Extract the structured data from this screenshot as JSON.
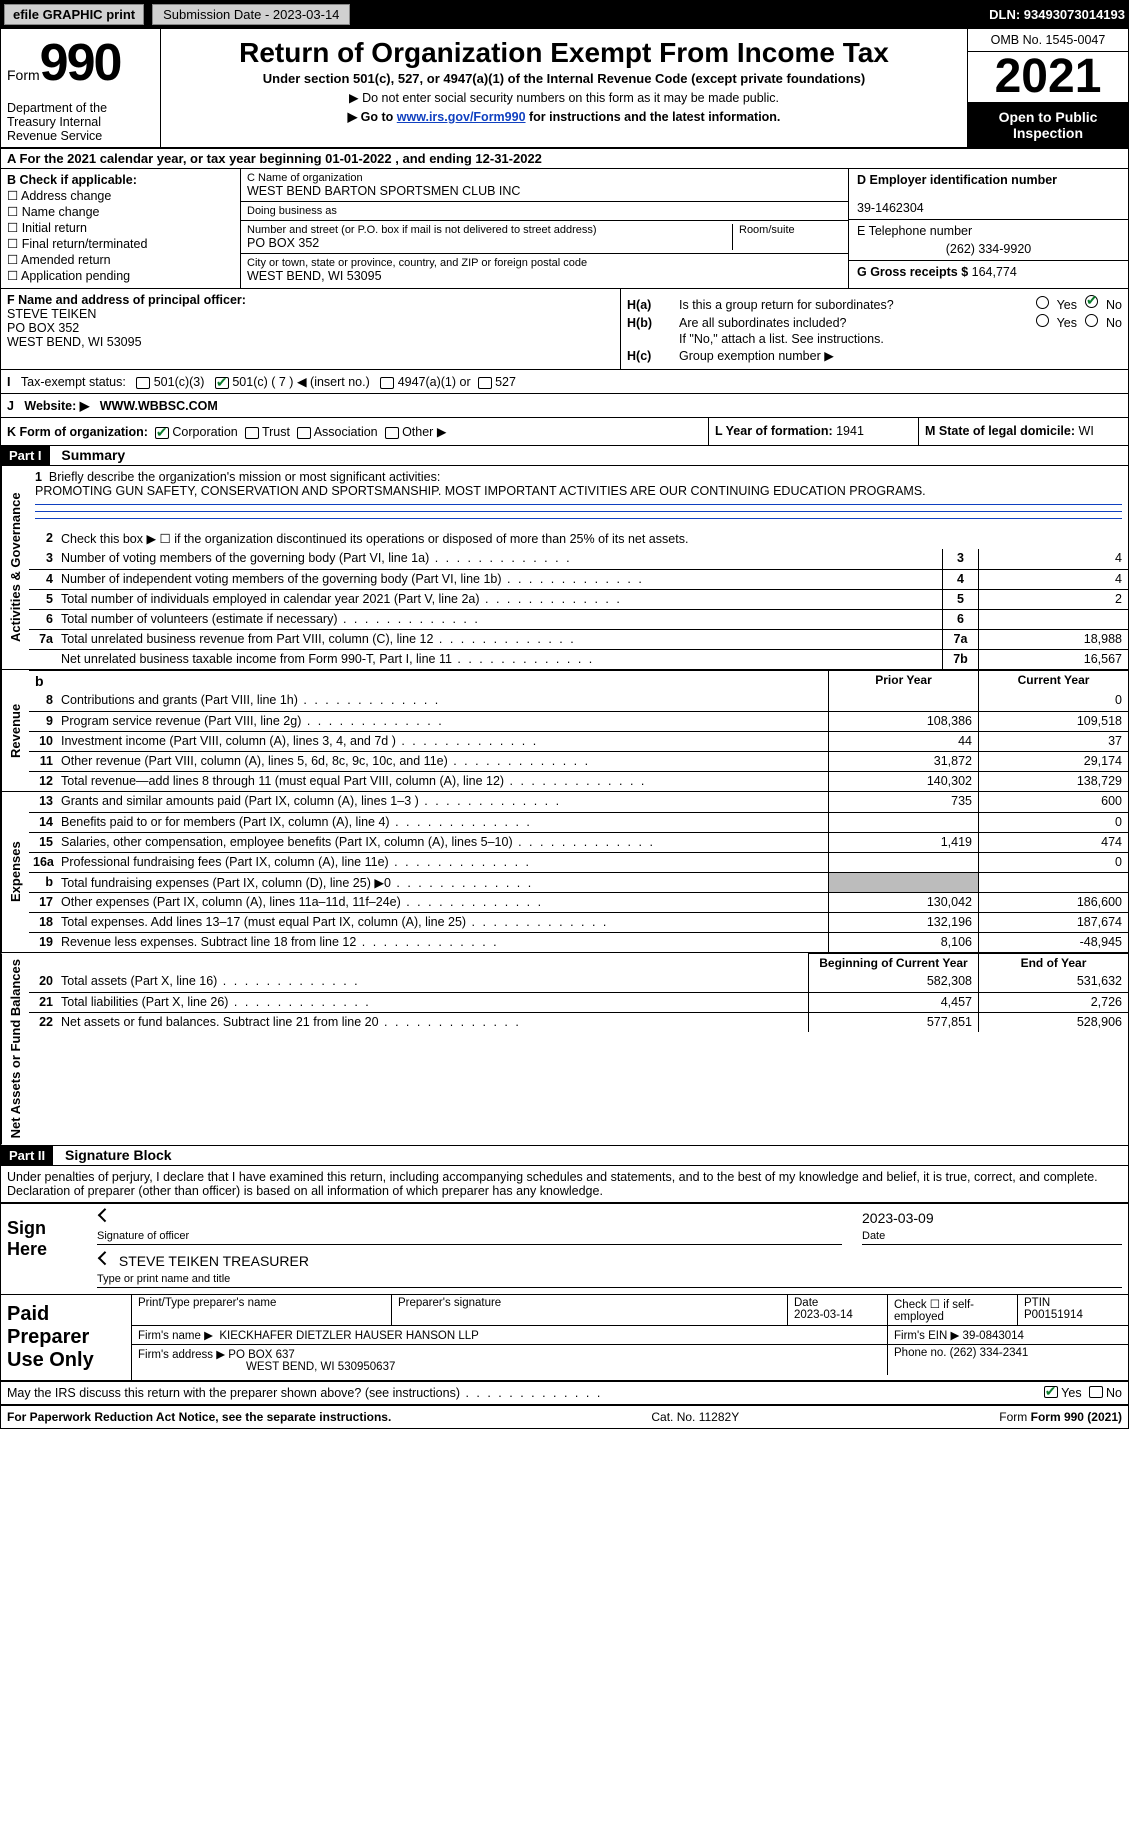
{
  "topbar": {
    "efile": "efile GRAPHIC",
    "print": "print",
    "submission": "Submission Date - 2023-03-14",
    "dln": "DLN: 93493073014193"
  },
  "header": {
    "form_label": "Form",
    "form_num": "990",
    "dept": "Department of the Treasury Internal Revenue Service",
    "title": "Return of Organization Exempt From Income Tax",
    "sub1": "Under section 501(c), 527, or 4947(a)(1) of the Internal Revenue Code (except private foundations)",
    "sub2": "▶ Do not enter social security numbers on this form as it may be made public.",
    "sub3_pre": "▶ Go to ",
    "sub3_link": "www.irs.gov/Form990",
    "sub3_post": " for instructions and the latest information.",
    "omb": "OMB No. 1545-0047",
    "year": "2021",
    "openpub": "Open to Public Inspection"
  },
  "A": {
    "line": "A For the 2021 calendar year, or tax year beginning 01-01-2022   , and ending 12-31-2022"
  },
  "B": {
    "title": "B Check if applicable:",
    "opts": [
      "Address change",
      "Name change",
      "Initial return",
      "Final return/terminated",
      "Amended return",
      "Application pending"
    ]
  },
  "C": {
    "name_lbl": "C Name of organization",
    "name": "WEST BEND BARTON SPORTSMEN CLUB INC",
    "dba_lbl": "Doing business as",
    "dba": "",
    "addr_lbl": "Number and street (or P.O. box if mail is not delivered to street address)",
    "room_lbl": "Room/suite",
    "addr": "PO BOX 352",
    "city_lbl": "City or town, state or province, country, and ZIP or foreign postal code",
    "city": "WEST BEND, WI  53095"
  },
  "D": {
    "lbl": "D Employer identification number",
    "val": "39-1462304"
  },
  "E": {
    "lbl": "E Telephone number",
    "val": "(262) 334-9920"
  },
  "G": {
    "lbl": "G Gross receipts $",
    "val": "164,774"
  },
  "F": {
    "lbl": "F  Name and address of principal officer:",
    "name": "STEVE TEIKEN",
    "addr1": "PO BOX 352",
    "addr2": "WEST BEND, WI  53095"
  },
  "H": {
    "a": "Is this a group return for subordinates?",
    "b": "Are all subordinates included?",
    "ifno": "If \"No,\" attach a list. See instructions.",
    "c": "Group exemption number ▶",
    "yes": "Yes",
    "no": "No"
  },
  "I": {
    "lbl": "Tax-exempt status:",
    "o1": "501(c)(3)",
    "o2": "501(c) ( 7 ) ◀ (insert no.)",
    "o3": "4947(a)(1) or",
    "o4": "527"
  },
  "J": {
    "lbl": "Website: ▶",
    "val": "WWW.WBBSC.COM"
  },
  "K": {
    "lbl": "K Form of organization:",
    "o1": "Corporation",
    "o2": "Trust",
    "o3": "Association",
    "o4": "Other ▶"
  },
  "L": {
    "lbl": "L Year of formation:",
    "val": "1941"
  },
  "M": {
    "lbl": "M State of legal domicile:",
    "val": "WI"
  },
  "part1": {
    "bar": "Part I",
    "title": "Summary",
    "q1_lbl": "Briefly describe the organization's mission or most significant activities:",
    "q1_val": "PROMOTING GUN SAFETY, CONSERVATION AND SPORTSMANSHIP. MOST IMPORTANT ACTIVITIES ARE OUR CONTINUING EDUCATION PROGRAMS.",
    "q2": "Check this box ▶ ☐  if the organization discontinued its operations or disposed of more than 25% of its net assets.",
    "side_ag": "Activities & Governance",
    "side_rev": "Revenue",
    "side_exp": "Expenses",
    "side_net": "Net Assets or Fund Balances",
    "hdr_prior": "Prior Year",
    "hdr_curr": "Current Year",
    "hdr_beg": "Beginning of Current Year",
    "hdr_end": "End of Year",
    "rows_ag": [
      {
        "n": "3",
        "d": "Number of voting members of the governing body (Part VI, line 1a)",
        "box": "3",
        "v": "4"
      },
      {
        "n": "4",
        "d": "Number of independent voting members of the governing body (Part VI, line 1b)",
        "box": "4",
        "v": "4"
      },
      {
        "n": "5",
        "d": "Total number of individuals employed in calendar year 2021 (Part V, line 2a)",
        "box": "5",
        "v": "2"
      },
      {
        "n": "6",
        "d": "Total number of volunteers (estimate if necessary)",
        "box": "6",
        "v": ""
      },
      {
        "n": "7a",
        "d": "Total unrelated business revenue from Part VIII, column (C), line 12",
        "box": "7a",
        "v": "18,988"
      },
      {
        "n": "",
        "d": "Net unrelated business taxable income from Form 990-T, Part I, line 11",
        "box": "7b",
        "v": "16,567"
      }
    ],
    "rows_rev": [
      {
        "n": "8",
        "d": "Contributions and grants (Part VIII, line 1h)",
        "p": "",
        "c": "0"
      },
      {
        "n": "9",
        "d": "Program service revenue (Part VIII, line 2g)",
        "p": "108,386",
        "c": "109,518"
      },
      {
        "n": "10",
        "d": "Investment income (Part VIII, column (A), lines 3, 4, and 7d )",
        "p": "44",
        "c": "37"
      },
      {
        "n": "11",
        "d": "Other revenue (Part VIII, column (A), lines 5, 6d, 8c, 9c, 10c, and 11e)",
        "p": "31,872",
        "c": "29,174"
      },
      {
        "n": "12",
        "d": "Total revenue—add lines 8 through 11 (must equal Part VIII, column (A), line 12)",
        "p": "140,302",
        "c": "138,729"
      }
    ],
    "rows_exp": [
      {
        "n": "13",
        "d": "Grants and similar amounts paid (Part IX, column (A), lines 1–3 )",
        "p": "735",
        "c": "600"
      },
      {
        "n": "14",
        "d": "Benefits paid to or for members (Part IX, column (A), line 4)",
        "p": "",
        "c": "0"
      },
      {
        "n": "15",
        "d": "Salaries, other compensation, employee benefits (Part IX, column (A), lines 5–10)",
        "p": "1,419",
        "c": "474"
      },
      {
        "n": "16a",
        "d": "Professional fundraising fees (Part IX, column (A), line 11e)",
        "p": "",
        "c": "0"
      },
      {
        "n": "b",
        "d": "Total fundraising expenses (Part IX, column (D), line 25) ▶0",
        "p": "SH",
        "c": "SH"
      },
      {
        "n": "17",
        "d": "Other expenses (Part IX, column (A), lines 11a–11d, 11f–24e)",
        "p": "130,042",
        "c": "186,600"
      },
      {
        "n": "18",
        "d": "Total expenses. Add lines 13–17 (must equal Part IX, column (A), line 25)",
        "p": "132,196",
        "c": "187,674"
      },
      {
        "n": "19",
        "d": "Revenue less expenses. Subtract line 18 from line 12",
        "p": "8,106",
        "c": "-48,945"
      }
    ],
    "rows_net": [
      {
        "n": "20",
        "d": "Total assets (Part X, line 16)",
        "p": "582,308",
        "c": "531,632"
      },
      {
        "n": "21",
        "d": "Total liabilities (Part X, line 26)",
        "p": "4,457",
        "c": "2,726"
      },
      {
        "n": "22",
        "d": "Net assets or fund balances. Subtract line 21 from line 20",
        "p": "577,851",
        "c": "528,906"
      }
    ]
  },
  "part2": {
    "bar": "Part II",
    "title": "Signature Block",
    "decl": "Under penalties of perjury, I declare that I have examined this return, including accompanying schedules and statements, and to the best of my knowledge and belief, it is true, correct, and complete. Declaration of preparer (other than officer) is based on all information of which preparer has any knowledge.",
    "sign_here": "Sign Here",
    "sig_officer": "Signature of officer",
    "sig_date": "2023-03-09",
    "date_lbl": "Date",
    "printed": "STEVE TEIKEN  TREASURER",
    "printed_lbl": "Type or print name and title",
    "paid": "Paid Preparer Use Only",
    "pp_name_lbl": "Print/Type preparer's name",
    "pp_sig_lbl": "Preparer's signature",
    "pp_date_lbl": "Date",
    "pp_date": "2023-03-14",
    "pp_check_lbl": "Check ☐ if self-employed",
    "pp_ptin_lbl": "PTIN",
    "pp_ptin": "P00151914",
    "firm_name_lbl": "Firm's name    ▶",
    "firm_name": "KIECKHAFER DIETZLER HAUSER HANSON LLP",
    "firm_ein_lbl": "Firm's EIN ▶",
    "firm_ein": "39-0843014",
    "firm_addr_lbl": "Firm's address ▶",
    "firm_addr1": "PO BOX 637",
    "firm_addr2": "WEST BEND, WI  530950637",
    "phone_lbl": "Phone no.",
    "phone": "(262) 334-2341",
    "discuss": "May the IRS discuss this return with the preparer shown above? (see instructions)"
  },
  "footer": {
    "pra": "For Paperwork Reduction Act Notice, see the separate instructions.",
    "cat": "Cat. No. 11282Y",
    "form": "Form 990 (2021)"
  },
  "colors": {
    "link": "#1040c0",
    "black": "#000000",
    "shade": "#bcbcbc",
    "check_green": "#0a7a2a"
  }
}
